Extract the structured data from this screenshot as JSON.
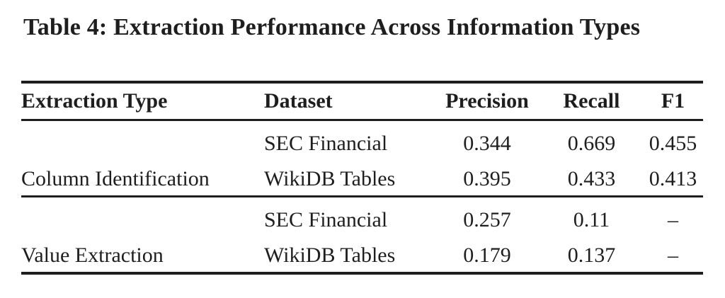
{
  "colors": {
    "text": "#1e1e1e",
    "rule": "#1e1e1e",
    "background": "#ffffff"
  },
  "table": {
    "caption": "Table 4: Extraction Performance Across Information Types",
    "columns": [
      "Extraction Type",
      "Dataset",
      "Precision",
      "Recall",
      "F1"
    ],
    "sections": [
      {
        "extraction_type": "Column Identification",
        "rows": [
          {
            "dataset": "SEC Financial",
            "precision": "0.344",
            "recall": "0.669",
            "f1": "0.455"
          },
          {
            "dataset": "WikiDB Tables",
            "precision": "0.395",
            "recall": "0.433",
            "f1": "0.413"
          }
        ]
      },
      {
        "extraction_type": "Value Extraction",
        "rows": [
          {
            "dataset": "SEC Financial",
            "precision": "0.257",
            "recall": "0.11",
            "f1": "–"
          },
          {
            "dataset": "WikiDB Tables",
            "precision": "0.179",
            "recall": "0.137",
            "f1": "–"
          }
        ]
      }
    ]
  }
}
